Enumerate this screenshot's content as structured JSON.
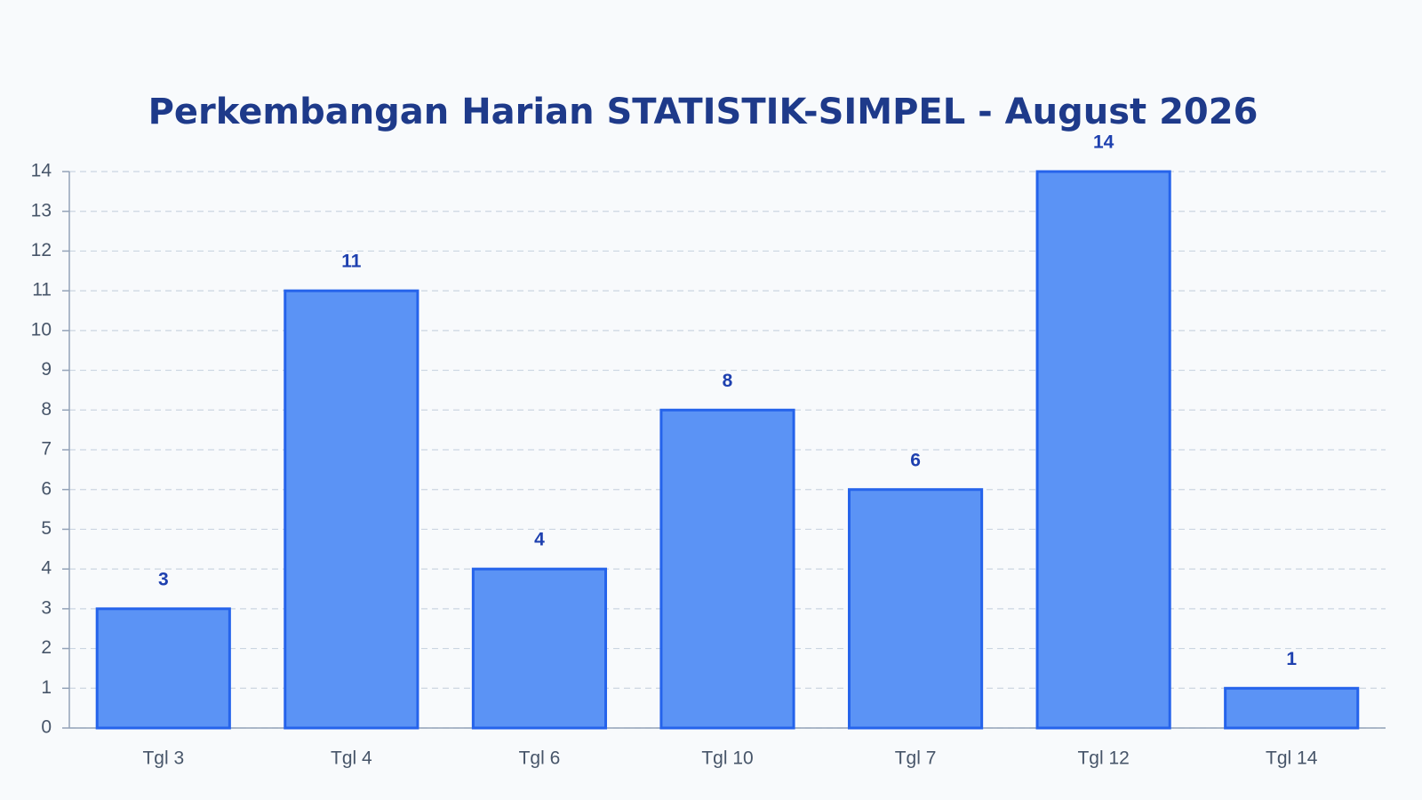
{
  "chart_data": {
    "type": "bar",
    "title": "Perkembangan Harian STATISTIK-SIMPEL - August 2026",
    "categories": [
      "Tgl 3",
      "Tgl 4",
      "Tgl 6",
      "Tgl 10",
      "Tgl 7",
      "Tgl 12",
      "Tgl 14"
    ],
    "values": [
      3,
      11,
      4,
      8,
      6,
      14,
      1
    ],
    "color": "#5b93f5",
    "border_color": "#2563eb",
    "ylim": [
      0,
      14
    ],
    "yticks": [
      0,
      1,
      2,
      3,
      4,
      5,
      6,
      7,
      8,
      9,
      10,
      11,
      12,
      13,
      14
    ],
    "grid": true
  }
}
